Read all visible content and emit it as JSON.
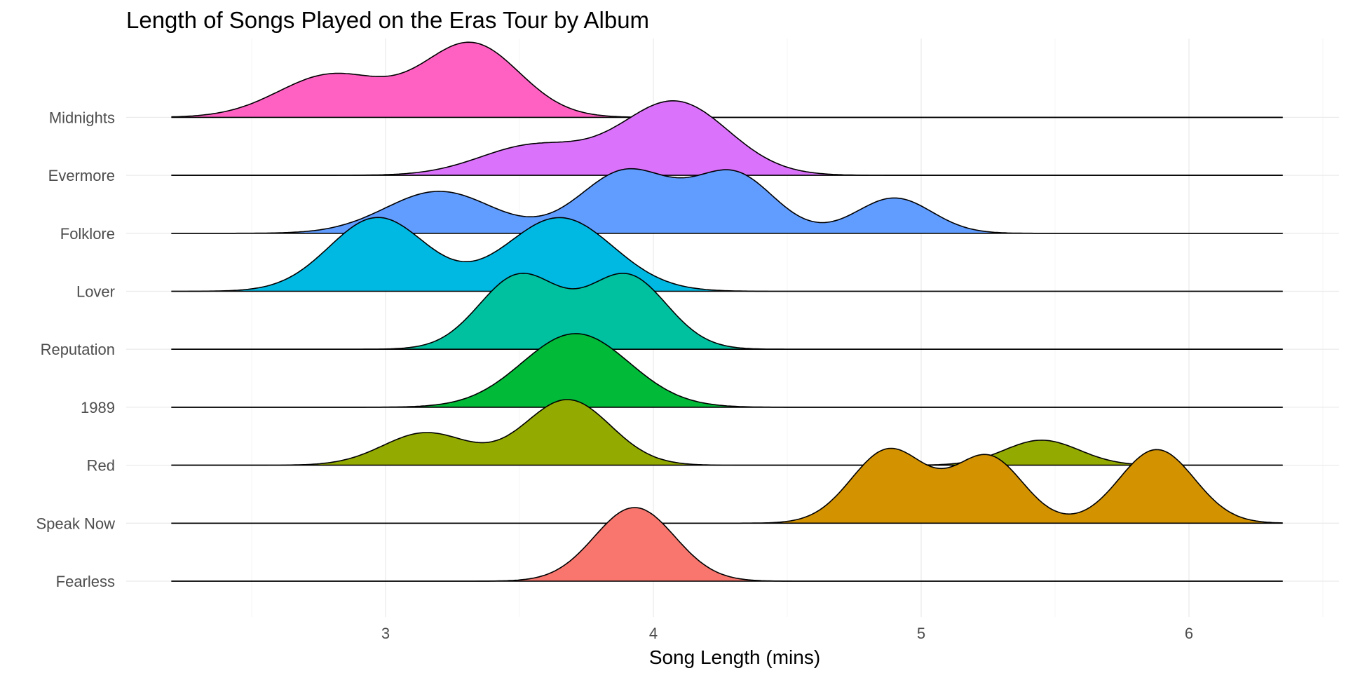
{
  "chart_data": {
    "type": "area",
    "title": "Length of Songs Played on the Eras Tour by Album",
    "xlabel": "Song Length (mins)",
    "ylabel": "",
    "xlim": [
      2.5,
      6.5
    ],
    "x_ticks": [
      3,
      4,
      5,
      6
    ],
    "x_range_data": [
      2.2,
      6.35
    ],
    "grid": true,
    "legend": "none",
    "categories": [
      "Fearless",
      "Speak Now",
      "Red",
      "1989",
      "Reputation",
      "Lover",
      "Folklore",
      "Evermore",
      "Midnights"
    ],
    "series": [
      {
        "name": "Fearless",
        "color": "#F8766D",
        "components": [
          {
            "mu": 3.93,
            "sigma": 0.15,
            "weight": 1.0
          }
        ]
      },
      {
        "name": "Speak Now",
        "color": "#D39200",
        "components": [
          {
            "mu": 4.88,
            "sigma": 0.14,
            "weight": 1.0
          },
          {
            "mu": 5.25,
            "sigma": 0.13,
            "weight": 0.9
          },
          {
            "mu": 5.88,
            "sigma": 0.14,
            "weight": 1.0
          }
        ]
      },
      {
        "name": "Red",
        "color": "#93AA00",
        "components": [
          {
            "mu": 3.15,
            "sigma": 0.16,
            "weight": 0.44
          },
          {
            "mu": 3.68,
            "sigma": 0.16,
            "weight": 0.89
          },
          {
            "mu": 5.45,
            "sigma": 0.14,
            "weight": 0.34
          }
        ]
      },
      {
        "name": "1989",
        "color": "#00BA38",
        "components": [
          {
            "mu": 3.71,
            "sigma": 0.2,
            "weight": 1.0
          }
        ]
      },
      {
        "name": "Reputation",
        "color": "#00C19F",
        "components": [
          {
            "mu": 3.5,
            "sigma": 0.15,
            "weight": 1.0
          },
          {
            "mu": 3.9,
            "sigma": 0.15,
            "weight": 1.0
          }
        ]
      },
      {
        "name": "Lover",
        "color": "#00B9E3",
        "components": [
          {
            "mu": 2.97,
            "sigma": 0.18,
            "weight": 1.0
          },
          {
            "mu": 3.65,
            "sigma": 0.2,
            "weight": 1.0
          }
        ]
      },
      {
        "name": "Folklore",
        "color": "#619CFF",
        "components": [
          {
            "mu": 3.2,
            "sigma": 0.2,
            "weight": 0.57
          },
          {
            "mu": 3.9,
            "sigma": 0.17,
            "weight": 0.85
          },
          {
            "mu": 4.3,
            "sigma": 0.15,
            "weight": 0.8
          },
          {
            "mu": 4.9,
            "sigma": 0.14,
            "weight": 0.48
          }
        ]
      },
      {
        "name": "Evermore",
        "color": "#DB72FB",
        "components": [
          {
            "mu": 3.55,
            "sigma": 0.2,
            "weight": 0.4
          },
          {
            "mu": 4.08,
            "sigma": 0.2,
            "weight": 1.0
          }
        ]
      },
      {
        "name": "Midnights",
        "color": "#FF61C3",
        "components": [
          {
            "mu": 2.8,
            "sigma": 0.2,
            "weight": 0.58
          },
          {
            "mu": 3.32,
            "sigma": 0.18,
            "weight": 1.0
          }
        ]
      }
    ]
  }
}
